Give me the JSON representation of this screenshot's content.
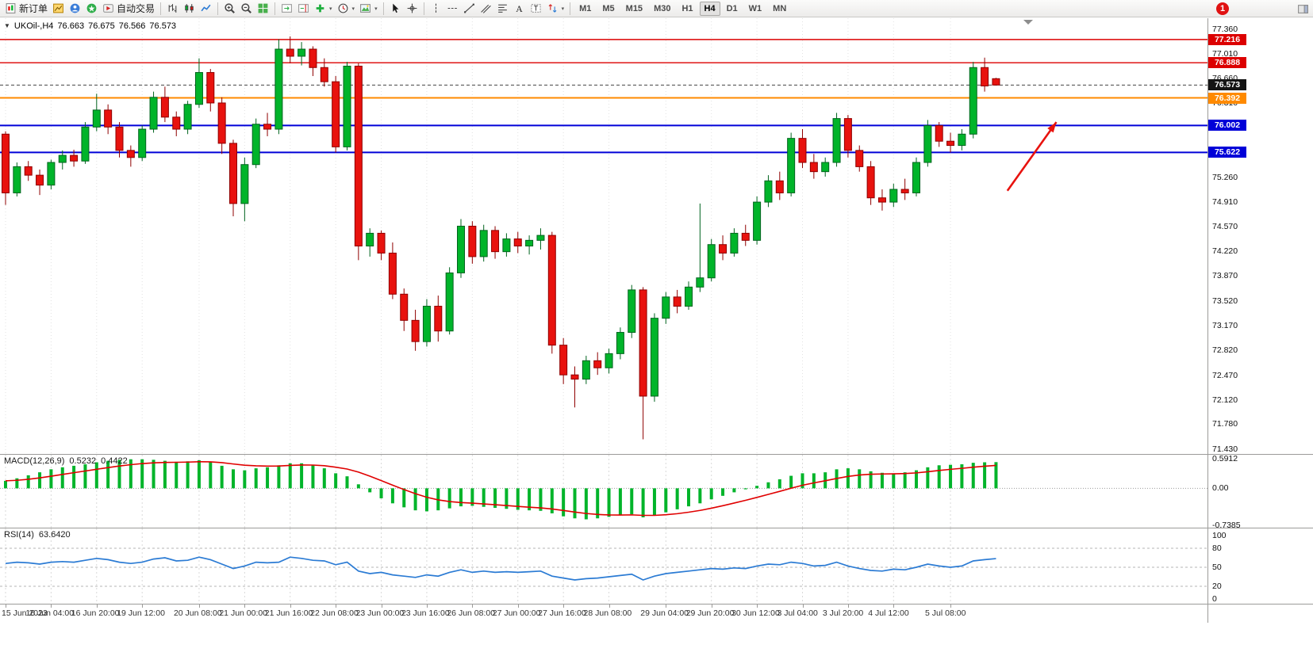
{
  "toolbar": {
    "items": [
      {
        "type": "button",
        "name": "new-order-button",
        "icon": "new-order-icon",
        "label": "新订单"
      },
      {
        "type": "icon",
        "name": "charts-icon"
      },
      {
        "type": "icon",
        "name": "market-watch-icon"
      },
      {
        "type": "icon",
        "name": "navigator-icon"
      },
      {
        "type": "button",
        "name": "autotrading-button",
        "icon": "autotrading-icon",
        "label": "自动交易"
      },
      {
        "type": "sep"
      },
      {
        "type": "icon",
        "name": "bar-chart-icon"
      },
      {
        "type": "icon",
        "name": "candle-chart-icon"
      },
      {
        "type": "icon",
        "name": "line-chart-icon"
      },
      {
        "type": "sep"
      },
      {
        "type": "icon",
        "name": "zoom-in-icon"
      },
      {
        "type": "icon",
        "name": "zoom-out-icon"
      },
      {
        "type": "icon",
        "name": "tile-windows-icon"
      },
      {
        "type": "sep"
      },
      {
        "type": "icon",
        "name": "autoscroll-icon"
      },
      {
        "type": "icon",
        "name": "chart-shift-icon"
      },
      {
        "type": "icon",
        "name": "add-indicator-icon",
        "caret": true
      },
      {
        "type": "icon",
        "name": "period-icon",
        "caret": true
      },
      {
        "type": "icon",
        "name": "template-icon",
        "caret": true
      },
      {
        "type": "sep"
      },
      {
        "type": "icon",
        "name": "cursor-icon"
      },
      {
        "type": "icon",
        "name": "crosshair-icon"
      },
      {
        "type": "sep"
      },
      {
        "type": "icon",
        "name": "vline-icon"
      },
      {
        "type": "icon",
        "name": "hline-icon"
      },
      {
        "type": "icon",
        "name": "trendline-icon"
      },
      {
        "type": "icon",
        "name": "channel-icon"
      },
      {
        "type": "icon",
        "name": "fibo-icon"
      },
      {
        "type": "icon",
        "name": "text-icon"
      },
      {
        "type": "icon",
        "name": "label-icon"
      },
      {
        "type": "icon",
        "name": "arrows-icon",
        "caret": true
      },
      {
        "type": "sep"
      }
    ],
    "timeframes": [
      "M1",
      "M5",
      "M15",
      "M30",
      "H1",
      "H4",
      "D1",
      "W1",
      "MN"
    ],
    "active_timeframe": "H4",
    "notification_badge": "1"
  },
  "chart_header": {
    "symbol_period": "UKOil-,H4",
    "open": "76.663",
    "high": "76.675",
    "low": "76.566",
    "close": "76.573"
  },
  "price_axis": {
    "ticks": [
      "77.360",
      "77.010",
      "76.660",
      "76.310",
      "75.260",
      "74.910",
      "74.570",
      "74.220",
      "73.870",
      "73.520",
      "73.170",
      "72.820",
      "72.470",
      "72.120",
      "71.780",
      "71.430"
    ],
    "badges": [
      {
        "text": "77.216",
        "bg": "#dc0000"
      },
      {
        "text": "76.888",
        "bg": "#dc0000"
      },
      {
        "text": "76.573",
        "bg": "#141414"
      },
      {
        "text": "76.392",
        "bg": "#ff8a00"
      },
      {
        "text": "76.002",
        "bg": "#0000d8"
      },
      {
        "text": "75.622",
        "bg": "#0000d8"
      }
    ]
  },
  "macd_panel": {
    "name": "MACD(12,26,9)",
    "value_main": "0.5232",
    "value_signal": "0.4422",
    "axis_labels": [
      "0.5912",
      "0.00",
      "-0.7385"
    ]
  },
  "rsi_panel": {
    "name": "RSI(14)",
    "value": "63.6420",
    "axis_labels": [
      "100",
      "80",
      "50",
      "20",
      "0"
    ]
  },
  "time_axis": {
    "labels": [
      "15 Jun 2023",
      "16 Jun 04:00",
      "16 Jun 20:00",
      "19 Jun 12:00",
      "20 Jun 08:00",
      "21 Jun 00:00",
      "21 Jun 16:00",
      "22 Jun 08:00",
      "23 Jun 00:00",
      "23 Jun 16:00",
      "26 Jun 08:00",
      "27 Jun 00:00",
      "27 Jun 16:00",
      "28 Jun 08:00",
      "29 Jun 04:00",
      "29 Jun 20:00",
      "30 Jun 12:00",
      "3 Jul 04:00",
      "3 Jul 20:00",
      "4 Jul 12:00",
      "5 Jul 08:00"
    ]
  },
  "chart_data": {
    "type": "candlestick",
    "symbol": "UKOil-",
    "period": "H4",
    "y_range": [
      71.43,
      77.36
    ],
    "current_price": 76.573,
    "candles": [
      [
        75.88,
        75.92,
        74.88,
        75.05
      ],
      [
        75.05,
        75.48,
        75.0,
        75.42
      ],
      [
        75.42,
        75.5,
        75.22,
        75.3
      ],
      [
        75.3,
        75.38,
        75.02,
        75.16
      ],
      [
        75.16,
        75.52,
        75.1,
        75.48
      ],
      [
        75.48,
        75.65,
        75.38,
        75.58
      ],
      [
        75.58,
        75.66,
        75.42,
        75.5
      ],
      [
        75.5,
        76.05,
        75.46,
        75.98
      ],
      [
        75.98,
        76.45,
        75.92,
        76.22
      ],
      [
        76.22,
        76.3,
        75.88,
        75.98
      ],
      [
        75.98,
        76.05,
        75.55,
        75.65
      ],
      [
        75.65,
        75.72,
        75.42,
        75.55
      ],
      [
        75.55,
        76.0,
        75.5,
        75.95
      ],
      [
        75.95,
        76.48,
        75.9,
        76.4
      ],
      [
        76.4,
        76.55,
        76.05,
        76.12
      ],
      [
        76.12,
        76.2,
        75.85,
        75.95
      ],
      [
        75.95,
        76.35,
        75.88,
        76.3
      ],
      [
        76.3,
        76.95,
        76.25,
        76.75
      ],
      [
        76.75,
        76.8,
        76.2,
        76.32
      ],
      [
        76.32,
        76.4,
        75.6,
        75.75
      ],
      [
        75.75,
        75.8,
        74.72,
        74.9
      ],
      [
        74.9,
        75.55,
        74.65,
        75.45
      ],
      [
        75.45,
        76.1,
        75.4,
        76.02
      ],
      [
        76.02,
        76.18,
        75.85,
        75.95
      ],
      [
        75.95,
        77.22,
        75.88,
        77.08
      ],
      [
        77.08,
        77.26,
        76.88,
        76.98
      ],
      [
        76.98,
        77.18,
        76.85,
        77.08
      ],
      [
        77.08,
        77.12,
        76.7,
        76.82
      ],
      [
        76.82,
        76.95,
        76.55,
        76.62
      ],
      [
        76.62,
        76.7,
        75.62,
        75.7
      ],
      [
        75.7,
        76.9,
        75.65,
        76.84
      ],
      [
        76.84,
        76.88,
        74.1,
        74.3
      ],
      [
        74.3,
        74.55,
        74.15,
        74.48
      ],
      [
        74.48,
        74.52,
        74.1,
        74.2
      ],
      [
        74.2,
        74.35,
        73.55,
        73.62
      ],
      [
        73.62,
        73.7,
        73.1,
        73.25
      ],
      [
        73.25,
        73.4,
        72.82,
        72.95
      ],
      [
        72.95,
        73.55,
        72.88,
        73.45
      ],
      [
        73.45,
        73.6,
        72.95,
        73.1
      ],
      [
        73.1,
        74.0,
        73.05,
        73.92
      ],
      [
        73.92,
        74.68,
        73.85,
        74.58
      ],
      [
        74.58,
        74.65,
        74.05,
        74.15
      ],
      [
        74.15,
        74.6,
        74.08,
        74.52
      ],
      [
        74.52,
        74.58,
        74.12,
        74.22
      ],
      [
        74.22,
        74.48,
        74.15,
        74.4
      ],
      [
        74.4,
        74.5,
        74.2,
        74.3
      ],
      [
        74.3,
        74.45,
        74.18,
        74.38
      ],
      [
        74.38,
        74.55,
        74.25,
        74.45
      ],
      [
        74.45,
        74.5,
        72.78,
        72.9
      ],
      [
        72.9,
        73.0,
        72.35,
        72.48
      ],
      [
        72.48,
        72.6,
        72.02,
        72.42
      ],
      [
        72.42,
        72.75,
        72.35,
        72.68
      ],
      [
        72.68,
        72.8,
        72.48,
        72.58
      ],
      [
        72.58,
        72.85,
        72.5,
        72.78
      ],
      [
        72.78,
        73.15,
        72.7,
        73.08
      ],
      [
        73.08,
        73.75,
        73.0,
        73.68
      ],
      [
        73.68,
        73.72,
        71.57,
        72.18
      ],
      [
        72.18,
        73.35,
        72.1,
        73.28
      ],
      [
        73.28,
        73.65,
        73.2,
        73.58
      ],
      [
        73.58,
        73.68,
        73.35,
        73.45
      ],
      [
        73.45,
        73.8,
        73.4,
        73.72
      ],
      [
        73.72,
        74.9,
        73.65,
        73.85
      ],
      [
        73.85,
        74.4,
        73.8,
        74.32
      ],
      [
        74.32,
        74.45,
        74.1,
        74.2
      ],
      [
        74.2,
        74.55,
        74.15,
        74.48
      ],
      [
        74.48,
        74.6,
        74.3,
        74.38
      ],
      [
        74.38,
        75.0,
        74.32,
        74.92
      ],
      [
        74.92,
        75.3,
        74.85,
        75.22
      ],
      [
        75.22,
        75.35,
        74.95,
        75.05
      ],
      [
        75.05,
        75.9,
        75.0,
        75.82
      ],
      [
        75.82,
        75.95,
        75.4,
        75.48
      ],
      [
        75.48,
        75.6,
        75.25,
        75.35
      ],
      [
        75.35,
        75.55,
        75.28,
        75.48
      ],
      [
        75.48,
        76.18,
        75.42,
        76.1
      ],
      [
        76.1,
        76.15,
        75.55,
        75.65
      ],
      [
        75.65,
        75.72,
        75.35,
        75.42
      ],
      [
        75.42,
        75.5,
        74.88,
        74.98
      ],
      [
        74.98,
        75.1,
        74.8,
        74.92
      ],
      [
        74.92,
        75.18,
        74.85,
        75.1
      ],
      [
        75.1,
        75.25,
        74.95,
        75.05
      ],
      [
        75.05,
        75.55,
        75.0,
        75.48
      ],
      [
        75.48,
        76.08,
        75.42,
        76.0
      ],
      [
        76.0,
        76.05,
        75.7,
        75.78
      ],
      [
        75.78,
        75.9,
        75.62,
        75.72
      ],
      [
        75.72,
        75.95,
        75.65,
        75.88
      ],
      [
        75.88,
        76.9,
        75.82,
        76.82
      ],
      [
        76.82,
        76.96,
        76.48,
        76.56
      ],
      [
        76.663,
        76.675,
        76.566,
        76.573
      ]
    ],
    "time_label_indices": [
      0,
      4,
      8,
      12,
      17,
      21,
      25,
      29,
      33,
      37,
      41,
      45,
      49,
      53,
      58,
      62,
      66,
      70,
      74,
      78,
      83
    ],
    "hlines": [
      {
        "price": 77.216,
        "color": "#dc0000",
        "width": 1.4,
        "name": "resistance-line-77216"
      },
      {
        "price": 76.888,
        "color": "#dc0000",
        "width": 1.4,
        "name": "resistance-line-76888"
      },
      {
        "price": 76.392,
        "color": "#ff8a00",
        "width": 2,
        "name": "level-line-76392"
      },
      {
        "price": 76.002,
        "color": "#0000d8",
        "width": 2,
        "name": "support-line-76002"
      },
      {
        "price": 75.622,
        "color": "#0000d8",
        "width": 2,
        "name": "support-line-75622"
      }
    ],
    "indicators": {
      "macd": {
        "params": "12,26,9",
        "last_main": 0.5232,
        "last_signal": 0.4422,
        "axis_max": 0.5912,
        "axis_min": -0.7385,
        "histogram": [
          0.15,
          0.2,
          0.26,
          0.32,
          0.38,
          0.42,
          0.45,
          0.48,
          0.52,
          0.55,
          0.57,
          0.58,
          0.58,
          0.57,
          0.55,
          0.53,
          0.54,
          0.56,
          0.52,
          0.45,
          0.38,
          0.36,
          0.4,
          0.42,
          0.46,
          0.5,
          0.5,
          0.46,
          0.4,
          0.3,
          0.24,
          0.08,
          -0.08,
          -0.2,
          -0.3,
          -0.38,
          -0.44,
          -0.46,
          -0.44,
          -0.4,
          -0.36,
          -0.35,
          -0.37,
          -0.39,
          -0.41,
          -0.43,
          -0.44,
          -0.45,
          -0.5,
          -0.56,
          -0.6,
          -0.62,
          -0.6,
          -0.57,
          -0.54,
          -0.52,
          -0.58,
          -0.54,
          -0.48,
          -0.42,
          -0.36,
          -0.3,
          -0.22,
          -0.15,
          -0.08,
          -0.02,
          0.05,
          0.12,
          0.18,
          0.25,
          0.3,
          0.3,
          0.32,
          0.38,
          0.4,
          0.38,
          0.34,
          0.31,
          0.3,
          0.32,
          0.36,
          0.42,
          0.46,
          0.47,
          0.48,
          0.51,
          0.52,
          0.5232
        ]
      },
      "rsi": {
        "period": 14,
        "last": 63.642,
        "levels": [
          80,
          50,
          20
        ],
        "values": [
          56,
          58,
          57,
          55,
          58,
          59,
          58,
          61,
          64,
          62,
          58,
          56,
          58,
          63,
          65,
          60,
          61,
          66,
          62,
          55,
          48,
          52,
          58,
          57,
          58,
          66,
          64,
          61,
          60,
          54,
          58,
          44,
          40,
          42,
          38,
          36,
          34,
          38,
          36,
          42,
          46,
          42,
          44,
          42,
          43,
          42,
          43,
          44,
          36,
          33,
          30,
          32,
          33,
          35,
          37,
          39,
          30,
          36,
          40,
          42,
          44,
          46,
          48,
          47,
          49,
          48,
          52,
          55,
          54,
          58,
          56,
          52,
          53,
          58,
          52,
          48,
          45,
          44,
          47,
          46,
          50,
          55,
          52,
          50,
          52,
          60,
          62,
          63.64
        ]
      }
    },
    "annotations": [
      {
        "type": "arrow",
        "color": "#e8120e",
        "from_index": 88,
        "from_price": 75.08,
        "to_index": 92.3,
        "to_price": 76.05
      }
    ],
    "colors": {
      "bull": "#00b42a",
      "bull_border": "#00641e",
      "bear": "#e8120e",
      "bear_border": "#8f0000",
      "macd_hist": "#00b42a",
      "macd_signal": "#e00000",
      "rsi_line": "#2b7bd4",
      "current_price_line": "#444444",
      "grid": "#e2e2e2"
    }
  }
}
